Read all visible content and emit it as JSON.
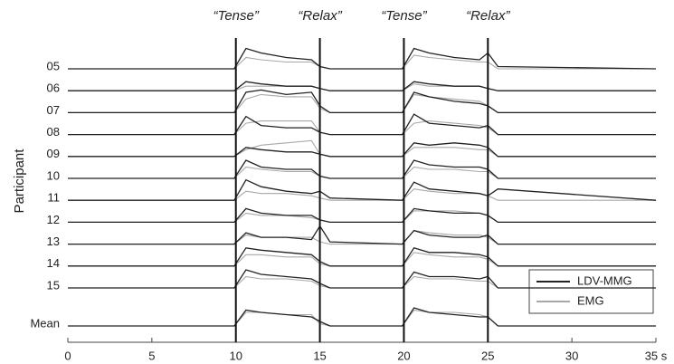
{
  "chart_data": {
    "type": "line",
    "ylabel": "Participant",
    "categories": [
      "05",
      "06",
      "07",
      "08",
      "09",
      "10",
      "11",
      "12",
      "13",
      "14",
      "15",
      "Mean"
    ],
    "x": [
      0,
      9.9,
      10.6,
      11.5,
      13,
      14.5,
      15,
      15.6,
      19.9,
      20.6,
      21.5,
      23,
      24.5,
      25,
      25.6,
      35
    ],
    "xlim": [
      0,
      35
    ],
    "xticks": [
      0,
      5,
      10,
      15,
      20,
      25,
      30,
      {
        "value": 35,
        "label": "35 s"
      }
    ],
    "markers": [
      10,
      15,
      20,
      25
    ],
    "annotations": [
      {
        "text": "“Tense”",
        "x": 10
      },
      {
        "text": "“Relax”",
        "x": 15
      },
      {
        "text": "“Tense”",
        "x": 20
      },
      {
        "text": "“Relax”",
        "x": 25
      }
    ],
    "legend": "lower right",
    "series": [
      {
        "name": "LDV-MMG",
        "color": "#222222",
        "values": [
          [
            0,
            0,
            0.9,
            0.7,
            0.5,
            0.4,
            0.1,
            0,
            0,
            0.9,
            0.7,
            0.5,
            0.4,
            0.7,
            0.1,
            0
          ],
          [
            0,
            0,
            0.4,
            0.3,
            0.2,
            0.2,
            0.1,
            0,
            0,
            0.4,
            0.3,
            0.2,
            0.2,
            0.1,
            0,
            0
          ],
          [
            0,
            0,
            0.9,
            1.0,
            0.8,
            0.9,
            0.3,
            0,
            0,
            0.9,
            0.7,
            0.5,
            0.4,
            0.3,
            0,
            0
          ],
          [
            0,
            0,
            0.8,
            0.4,
            0.3,
            0.3,
            0.1,
            0,
            0,
            0.9,
            0.5,
            0.4,
            0.3,
            0.4,
            0,
            0
          ],
          [
            0,
            0,
            0.4,
            0.3,
            0.2,
            0.2,
            0.1,
            0,
            0,
            0.6,
            0.5,
            0.6,
            0.5,
            0.4,
            0,
            0
          ],
          [
            0,
            0,
            0.8,
            0.5,
            0.4,
            0.4,
            0.1,
            0,
            0,
            0.8,
            0.6,
            0.5,
            0.5,
            0.4,
            0,
            0
          ],
          [
            0,
            0,
            0.9,
            0.6,
            0.4,
            0.3,
            0.4,
            0.1,
            0,
            0.8,
            0.5,
            0.4,
            0.3,
            0.2,
            0.5,
            0
          ],
          [
            0,
            0,
            0.6,
            0.4,
            0.3,
            0.3,
            0.1,
            0,
            0,
            0.6,
            0.5,
            0.4,
            0.4,
            0.3,
            0,
            0
          ],
          [
            0,
            0,
            0.5,
            0.3,
            0.3,
            0.2,
            0.8,
            0.1,
            0,
            0.6,
            0.4,
            0.3,
            0.3,
            0.4,
            0,
            0
          ],
          [
            0,
            0,
            0.8,
            0.7,
            0.6,
            0.5,
            0.2,
            0,
            0,
            0.8,
            0.6,
            0.6,
            0.5,
            0.4,
            0,
            0
          ],
          [
            0,
            0,
            0.8,
            0.6,
            0.5,
            0.4,
            0.2,
            0,
            0,
            0.7,
            0.5,
            0.5,
            0.4,
            0.5,
            0,
            0
          ],
          [
            0,
            0,
            0.7,
            0.6,
            0.5,
            0.4,
            0.2,
            0,
            0,
            0.8,
            0.6,
            0.5,
            0.4,
            0.4,
            0,
            0
          ]
        ]
      },
      {
        "name": "EMG",
        "color": "#a8a8a8",
        "values": [
          [
            0,
            0,
            0.5,
            0.4,
            0.3,
            0.3,
            0.1,
            0,
            0,
            0.6,
            0.5,
            0.4,
            0.3,
            0.3,
            0,
            0
          ],
          [
            0,
            0,
            0.2,
            0.2,
            0.2,
            0.2,
            0.1,
            0,
            0,
            0.3,
            0.2,
            0.2,
            0.2,
            0.1,
            0,
            0
          ],
          [
            0,
            0,
            0.6,
            0.8,
            0.7,
            0.7,
            0.2,
            0,
            0,
            0.8,
            0.7,
            0.6,
            0.5,
            0.3,
            0,
            0
          ],
          [
            0,
            0,
            0.5,
            0.6,
            0.6,
            0.6,
            0.1,
            0,
            0,
            0.5,
            0.6,
            0.5,
            0.4,
            0.3,
            0,
            0
          ],
          [
            0,
            0,
            0.3,
            0.5,
            0.6,
            0.7,
            0.1,
            0,
            0,
            0.4,
            0.4,
            0.4,
            0.3,
            0.3,
            0,
            0
          ],
          [
            0,
            0,
            0.5,
            0.4,
            0.3,
            0.3,
            0.1,
            0,
            0,
            0.5,
            0.4,
            0.4,
            0.3,
            0.3,
            0,
            0
          ],
          [
            0,
            0,
            0.4,
            0.3,
            0.3,
            0.2,
            0.1,
            0,
            0,
            0.5,
            0.4,
            0.3,
            0.3,
            0.2,
            0,
            0
          ],
          [
            0,
            0,
            0.4,
            0.3,
            0.3,
            0.2,
            0.1,
            0,
            0,
            0.5,
            0.5,
            0.5,
            0.4,
            0.3,
            0,
            0
          ],
          [
            0,
            0,
            0.4,
            0.3,
            0.3,
            0.3,
            0.1,
            0,
            0,
            0.6,
            0.5,
            0.4,
            0.4,
            0.3,
            0,
            0
          ],
          [
            0,
            0,
            0.5,
            0.5,
            0.4,
            0.4,
            0.1,
            0,
            0,
            0.6,
            0.5,
            0.4,
            0.4,
            0.3,
            0,
            0
          ],
          [
            0,
            0,
            0.5,
            0.4,
            0.4,
            0.3,
            0.1,
            0,
            0,
            0.5,
            0.4,
            0.4,
            0.3,
            0.3,
            0,
            0
          ],
          [
            0,
            0,
            0.6,
            0.6,
            0.5,
            0.5,
            0.1,
            0,
            0,
            0.7,
            0.6,
            0.6,
            0.5,
            0.4,
            0,
            0
          ]
        ]
      }
    ]
  }
}
